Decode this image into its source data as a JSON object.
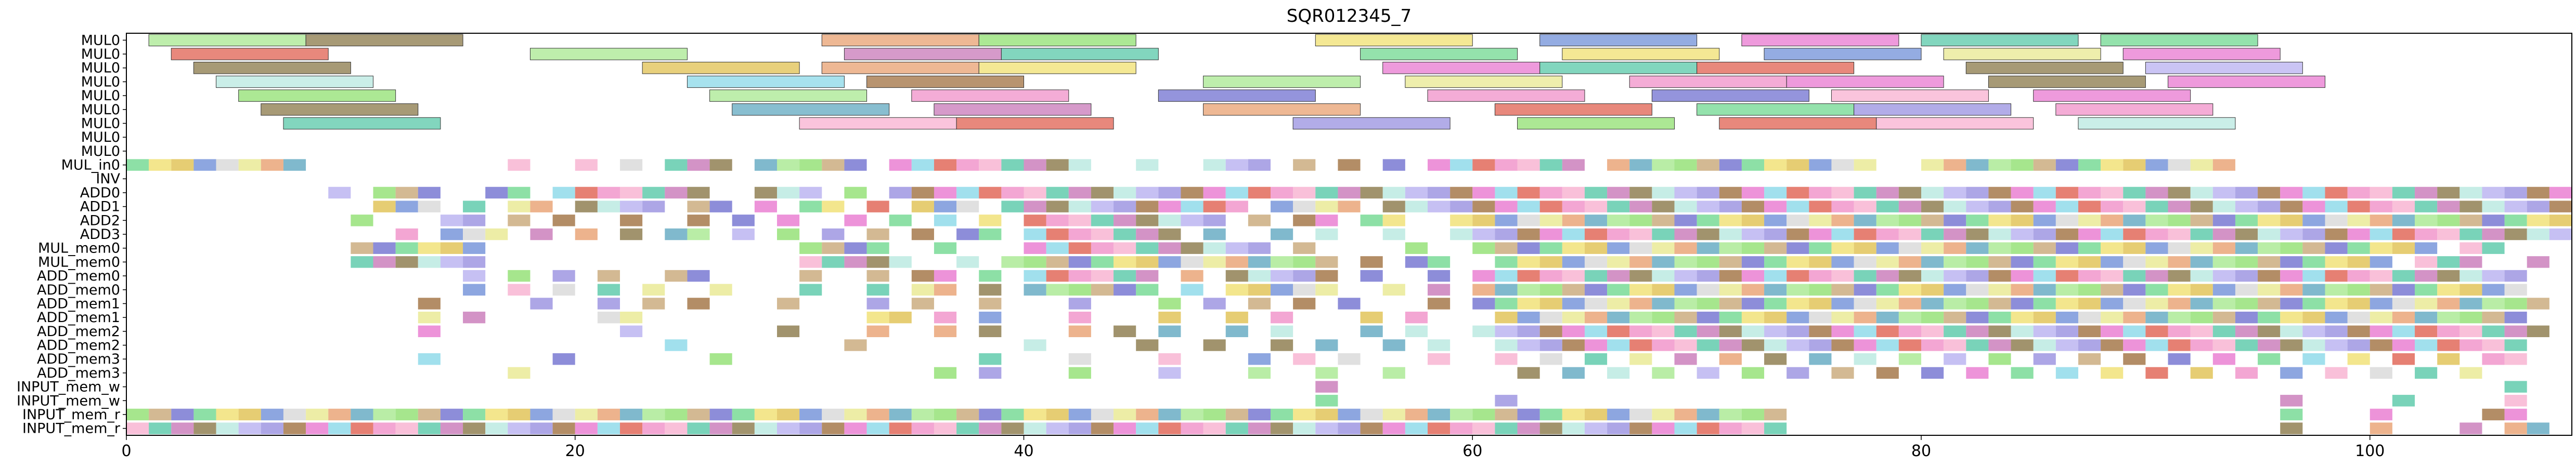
{
  "chart_data": {
    "type": "gantt",
    "title": "SQR012345_7",
    "xlabel": "",
    "ylabel": "",
    "xlim": [
      0,
      109
    ],
    "x_ticks": [
      0,
      20,
      40,
      60,
      80,
      100
    ],
    "rows": [
      "MUL0",
      "MUL0",
      "MUL0",
      "MUL0",
      "MUL0",
      "MUL0",
      "MUL0",
      "MUL0",
      "MUL0",
      "MUL_in0",
      "INV",
      "ADD0",
      "ADD1",
      "ADD2",
      "ADD3",
      "MUL_mem0",
      "MUL_mem0",
      "ADD_mem0",
      "ADD_mem0",
      "ADD_mem1",
      "ADD_mem1",
      "ADD_mem2",
      "ADD_mem2",
      "ADD_mem3",
      "ADD_mem3",
      "INPUT_mem_w",
      "INPUT_mem_w",
      "INPUT_mem_r",
      "INPUT_mem_r"
    ],
    "palette": [
      "#e06050",
      "#c8a878",
      "#8a7848",
      "#7090d8",
      "#e878d0",
      "#a8e890",
      "#58c8a8",
      "#f0e070",
      "#9890e0",
      "#e8a070",
      "#f090c8",
      "#7070d0",
      "#b8e8e0",
      "#d8d8d8",
      "#8ad8e8",
      "#90e070",
      "#c878b8",
      "#e0c050",
      "#a07040",
      "#60a8c0",
      "#f8b0d0",
      "#70d890",
      "#b8b0f0",
      "#e8e890"
    ],
    "span_rows": 9,
    "unit_start": 9,
    "spans": [
      [
        0,
        1,
        8,
        5
      ],
      [
        0,
        8,
        15,
        2
      ],
      [
        0,
        31,
        38,
        9
      ],
      [
        0,
        38,
        45,
        15
      ],
      [
        0,
        53,
        60,
        7
      ],
      [
        0,
        63,
        70,
        3
      ],
      [
        0,
        72,
        79,
        4
      ],
      [
        0,
        80,
        87,
        6
      ],
      [
        0,
        88,
        95,
        21
      ],
      [
        1,
        2,
        9,
        0
      ],
      [
        1,
        18,
        25,
        5
      ],
      [
        1,
        32,
        39,
        16
      ],
      [
        1,
        39,
        46,
        6
      ],
      [
        1,
        55,
        62,
        21
      ],
      [
        1,
        64,
        71,
        7
      ],
      [
        1,
        73,
        80,
        3
      ],
      [
        1,
        81,
        88,
        23
      ],
      [
        1,
        89,
        96,
        4
      ],
      [
        2,
        3,
        10,
        2
      ],
      [
        2,
        23,
        30,
        17
      ],
      [
        2,
        31,
        38,
        9
      ],
      [
        2,
        38,
        45,
        7
      ],
      [
        2,
        56,
        63,
        4
      ],
      [
        2,
        63,
        70,
        6
      ],
      [
        2,
        70,
        77,
        0
      ],
      [
        2,
        82,
        89,
        2
      ],
      [
        2,
        90,
        97,
        22
      ],
      [
        3,
        4,
        11,
        12
      ],
      [
        3,
        25,
        32,
        14
      ],
      [
        3,
        33,
        40,
        18
      ],
      [
        3,
        48,
        55,
        5
      ],
      [
        3,
        57,
        64,
        23
      ],
      [
        3,
        67,
        74,
        10
      ],
      [
        3,
        74,
        81,
        4
      ],
      [
        3,
        83,
        90,
        2
      ],
      [
        3,
        91,
        98,
        4
      ],
      [
        4,
        5,
        12,
        15
      ],
      [
        4,
        26,
        33,
        5
      ],
      [
        4,
        35,
        42,
        10
      ],
      [
        4,
        46,
        53,
        11
      ],
      [
        4,
        58,
        65,
        10
      ],
      [
        4,
        68,
        75,
        11
      ],
      [
        4,
        76,
        83,
        20
      ],
      [
        4,
        85,
        92,
        4
      ],
      [
        5,
        6,
        13,
        2
      ],
      [
        5,
        27,
        34,
        19
      ],
      [
        5,
        36,
        43,
        16
      ],
      [
        5,
        48,
        55,
        9
      ],
      [
        5,
        61,
        68,
        0
      ],
      [
        5,
        70,
        77,
        21
      ],
      [
        5,
        77,
        84,
        8
      ],
      [
        5,
        86,
        93,
        10
      ],
      [
        6,
        7,
        14,
        6
      ],
      [
        6,
        30,
        37,
        20
      ],
      [
        6,
        37,
        44,
        0
      ],
      [
        6,
        52,
        59,
        8
      ],
      [
        6,
        62,
        69,
        15
      ],
      [
        6,
        71,
        78,
        0
      ],
      [
        6,
        78,
        85,
        20
      ],
      [
        6,
        87,
        94,
        12
      ]
    ],
    "units": {
      "9": [
        0,
        1,
        2,
        3,
        4,
        5,
        6,
        7,
        17,
        20,
        22,
        24,
        25,
        26,
        28,
        29,
        30,
        31,
        32,
        34,
        35,
        36,
        37,
        38,
        39,
        40,
        41,
        42,
        45,
        48,
        49,
        50,
        52,
        54,
        56,
        58,
        59,
        60,
        61,
        62,
        63,
        64,
        66,
        67,
        68,
        69,
        70,
        71,
        72,
        73,
        74,
        75,
        76,
        77,
        80,
        81,
        82,
        83,
        84,
        85,
        86,
        87,
        88,
        89,
        90,
        91,
        92,
        93
      ],
      "11": [
        9,
        11,
        12,
        13,
        16,
        17,
        19,
        20,
        21,
        22,
        23,
        24,
        25,
        28,
        29,
        30,
        32,
        34,
        35,
        36,
        37,
        38,
        39,
        40,
        41,
        42,
        43,
        44,
        45,
        46,
        47,
        48,
        49,
        50,
        51,
        52,
        53,
        54,
        55,
        56,
        57,
        58,
        59,
        60,
        61,
        62,
        63,
        64,
        65,
        66,
        67,
        68,
        69,
        70,
        71,
        72,
        73,
        74,
        75,
        76,
        77,
        78,
        79,
        80,
        81,
        82,
        83,
        84,
        85,
        86,
        87,
        88,
        89,
        90,
        91,
        92,
        93,
        94,
        95,
        96,
        97,
        98,
        99,
        100,
        101,
        102,
        103,
        104,
        105,
        106,
        107,
        108
      ],
      "12": [
        11,
        12,
        13,
        15,
        17,
        18,
        20,
        21,
        22,
        23,
        25,
        26,
        28,
        30,
        31,
        33,
        35,
        36,
        37,
        39,
        40,
        41,
        42,
        43,
        44,
        45,
        46,
        47,
        48,
        49,
        51,
        52,
        53,
        54,
        56,
        57,
        58,
        59,
        60,
        61,
        62,
        63,
        64,
        65,
        66,
        67,
        68,
        69,
        70,
        71,
        72,
        73,
        74,
        75,
        76,
        77,
        78,
        79,
        80,
        81,
        82,
        83,
        84,
        85,
        86,
        87,
        88,
        89,
        90,
        91,
        92,
        93,
        94,
        95,
        96,
        97,
        98,
        99,
        100,
        101,
        102,
        103,
        104,
        105,
        106,
        107,
        108
      ],
      "13": [
        10,
        14,
        15,
        17,
        19,
        22,
        25,
        27,
        29,
        32,
        34,
        36,
        38,
        40,
        41,
        42,
        43,
        44,
        45,
        46,
        47,
        48,
        50,
        52,
        53,
        55,
        56,
        59,
        60,
        61,
        62,
        63,
        64,
        65,
        66,
        67,
        68,
        69,
        70,
        71,
        72,
        73,
        74,
        75,
        76,
        77,
        78,
        79,
        80,
        81,
        82,
        83,
        84,
        85,
        86,
        87,
        88,
        89,
        90,
        91,
        92,
        93,
        94,
        95,
        96,
        97,
        98,
        99,
        100,
        101,
        102,
        103,
        104,
        105,
        106,
        107,
        108
      ],
      "14": [
        12,
        14,
        15,
        16,
        18,
        20,
        22,
        24,
        25,
        27,
        29,
        31,
        33,
        35,
        37,
        38,
        40,
        41,
        42,
        43,
        44,
        45,
        46,
        48,
        51,
        53,
        56,
        59,
        60,
        61,
        62,
        63,
        64,
        65,
        66,
        67,
        68,
        69,
        70,
        71,
        72,
        73,
        74,
        75,
        76,
        77,
        78,
        79,
        80,
        81,
        82,
        83,
        84,
        85,
        86,
        87,
        88,
        89,
        90,
        91,
        92,
        93,
        94,
        95,
        96,
        97,
        98,
        99,
        100,
        101,
        102,
        103,
        104,
        105,
        106,
        107,
        108
      ],
      "15": [
        10,
        11,
        12,
        13,
        14,
        15,
        30,
        31,
        32,
        33,
        36,
        40,
        41,
        42,
        43,
        44,
        45,
        46,
        47,
        48,
        49,
        50,
        52,
        57,
        60,
        61,
        62,
        63,
        64,
        65,
        66,
        67,
        68,
        69,
        70,
        71,
        72,
        73,
        74,
        75,
        76,
        77,
        78,
        79,
        80,
        81,
        82,
        83,
        84,
        85,
        86,
        87,
        88,
        89,
        90,
        91,
        92,
        93,
        94,
        95,
        96,
        97,
        98,
        99,
        100,
        101,
        102,
        104,
        105
      ],
      "16": [
        10,
        11,
        12,
        13,
        14,
        15,
        30,
        31,
        32,
        33,
        34,
        37,
        39,
        40,
        41,
        42,
        43,
        44,
        45,
        46,
        47,
        48,
        49,
        50,
        51,
        52,
        53,
        55,
        57,
        58,
        61,
        62,
        63,
        64,
        65,
        66,
        67,
        68,
        69,
        70,
        71,
        72,
        73,
        74,
        75,
        76,
        77,
        78,
        79,
        80,
        81,
        82,
        83,
        84,
        85,
        86,
        87,
        88,
        89,
        90,
        91,
        92,
        93,
        94,
        95,
        96,
        97,
        98,
        99,
        100,
        102,
        103,
        104,
        107
      ],
      "17": [
        15,
        17,
        19,
        21,
        24,
        25,
        30,
        33,
        35,
        36,
        38,
        40,
        41,
        42,
        43,
        44,
        45,
        47,
        49,
        50,
        51,
        52,
        53,
        55,
        58,
        60,
        61,
        62,
        63,
        64,
        65,
        66,
        67,
        68,
        69,
        70,
        71,
        72,
        73,
        74,
        75,
        76,
        77,
        78,
        79,
        80,
        81,
        82,
        83,
        84,
        85,
        86,
        87,
        88,
        89,
        90,
        91,
        92,
        93,
        94,
        95,
        96,
        97,
        98,
        99,
        100,
        101,
        102,
        103,
        104,
        105,
        106
      ],
      "18": [
        15,
        17,
        19,
        21,
        23,
        26,
        30,
        33,
        35,
        36,
        38,
        40,
        41,
        42,
        43,
        44,
        45,
        47,
        49,
        50,
        51,
        52,
        53,
        56,
        58,
        60,
        61,
        62,
        63,
        64,
        65,
        66,
        67,
        68,
        69,
        70,
        71,
        72,
        73,
        74,
        75,
        76,
        77,
        78,
        79,
        80,
        81,
        82,
        83,
        84,
        85,
        86,
        87,
        88,
        89,
        90,
        91,
        92,
        93,
        94,
        95,
        96,
        97,
        98,
        99,
        100,
        101,
        102,
        103,
        104,
        105,
        106
      ],
      "19": [
        13,
        18,
        21,
        23,
        25,
        29,
        33,
        35,
        38,
        42,
        46,
        48,
        50,
        52,
        54,
        58,
        60,
        61,
        62,
        63,
        64,
        65,
        66,
        67,
        68,
        69,
        70,
        71,
        72,
        73,
        74,
        75,
        76,
        77,
        78,
        79,
        80,
        81,
        82,
        83,
        84,
        85,
        86,
        87,
        88,
        89,
        90,
        91,
        92,
        93,
        94,
        95,
        96,
        97,
        98,
        99,
        100,
        101,
        102,
        103,
        104,
        105,
        106,
        107
      ],
      "20": [
        13,
        15,
        21,
        22,
        33,
        34,
        36,
        38,
        42,
        46,
        49,
        51,
        55,
        57,
        61,
        62,
        63,
        64,
        65,
        66,
        67,
        68,
        69,
        70,
        71,
        72,
        73,
        74,
        75,
        76,
        77,
        78,
        79,
        80,
        81,
        82,
        83,
        84,
        85,
        86,
        87,
        88,
        89,
        90,
        91,
        92,
        93,
        94,
        95,
        96,
        97,
        98,
        99,
        100,
        101,
        102,
        103,
        104,
        105,
        106
      ],
      "21": [
        13,
        22,
        29,
        33,
        36,
        38,
        42,
        44,
        46,
        49,
        51,
        55,
        57,
        60,
        61,
        62,
        63,
        64,
        65,
        66,
        67,
        68,
        69,
        70,
        71,
        72,
        73,
        74,
        75,
        76,
        77,
        78,
        79,
        80,
        81,
        82,
        83,
        84,
        85,
        86,
        87,
        88,
        89,
        90,
        91,
        92,
        93,
        94,
        95,
        96,
        97,
        98,
        99,
        100,
        101,
        102,
        103,
        104,
        105,
        106,
        107
      ],
      "22": [
        24,
        32,
        40,
        45,
        48,
        51,
        53,
        56,
        58,
        61,
        62,
        63,
        64,
        65,
        66,
        67,
        68,
        69,
        70,
        71,
        72,
        73,
        74,
        75,
        76,
        77,
        78,
        79,
        80,
        81,
        82,
        83,
        84,
        85,
        86,
        87,
        88,
        89,
        90,
        91,
        92,
        93,
        94,
        95,
        96,
        97,
        98,
        99,
        100,
        101,
        102,
        103,
        104,
        105,
        106
      ],
      "23": [
        13,
        19,
        26,
        38,
        42,
        46,
        50,
        52,
        54,
        58,
        61,
        63,
        65,
        67,
        69,
        71,
        73,
        75,
        77,
        79,
        81,
        83,
        85,
        87,
        89,
        91,
        93,
        95,
        97,
        99,
        101,
        103,
        105,
        106
      ],
      "24": [
        17,
        36,
        38,
        42,
        46,
        50,
        53,
        56,
        62,
        64,
        66,
        68,
        70,
        72,
        74,
        76,
        78,
        80,
        82,
        84,
        86,
        88,
        90,
        92,
        94,
        96,
        98,
        100,
        102,
        104
      ],
      "25": [
        53,
        106
      ],
      "26": [
        53,
        61,
        96,
        101,
        106
      ],
      "27": [
        0,
        1,
        2,
        3,
        4,
        5,
        6,
        7,
        8,
        9,
        10,
        11,
        12,
        13,
        14,
        15,
        16,
        17,
        18,
        19,
        20,
        21,
        22,
        23,
        24,
        25,
        26,
        27,
        28,
        29,
        30,
        31,
        32,
        33,
        34,
        35,
        36,
        37,
        38,
        39,
        40,
        41,
        42,
        43,
        44,
        45,
        46,
        47,
        48,
        49,
        50,
        51,
        52,
        53,
        54,
        55,
        56,
        57,
        58,
        59,
        60,
        61,
        62,
        63,
        64,
        65,
        66,
        67,
        68,
        69,
        70,
        71,
        72,
        73,
        96,
        100,
        105,
        106
      ],
      "28": [
        0,
        1,
        2,
        3,
        4,
        5,
        6,
        7,
        8,
        9,
        10,
        11,
        12,
        13,
        14,
        15,
        16,
        17,
        18,
        19,
        20,
        21,
        22,
        23,
        24,
        25,
        26,
        27,
        28,
        29,
        30,
        31,
        32,
        33,
        34,
        35,
        36,
        37,
        38,
        39,
        40,
        41,
        42,
        43,
        44,
        45,
        46,
        47,
        48,
        49,
        50,
        51,
        52,
        53,
        54,
        55,
        56,
        57,
        58,
        59,
        60,
        61,
        62,
        63,
        64,
        65,
        66,
        67,
        68,
        69,
        70,
        71,
        72,
        73,
        96,
        100,
        104,
        106,
        107
      ]
    }
  }
}
